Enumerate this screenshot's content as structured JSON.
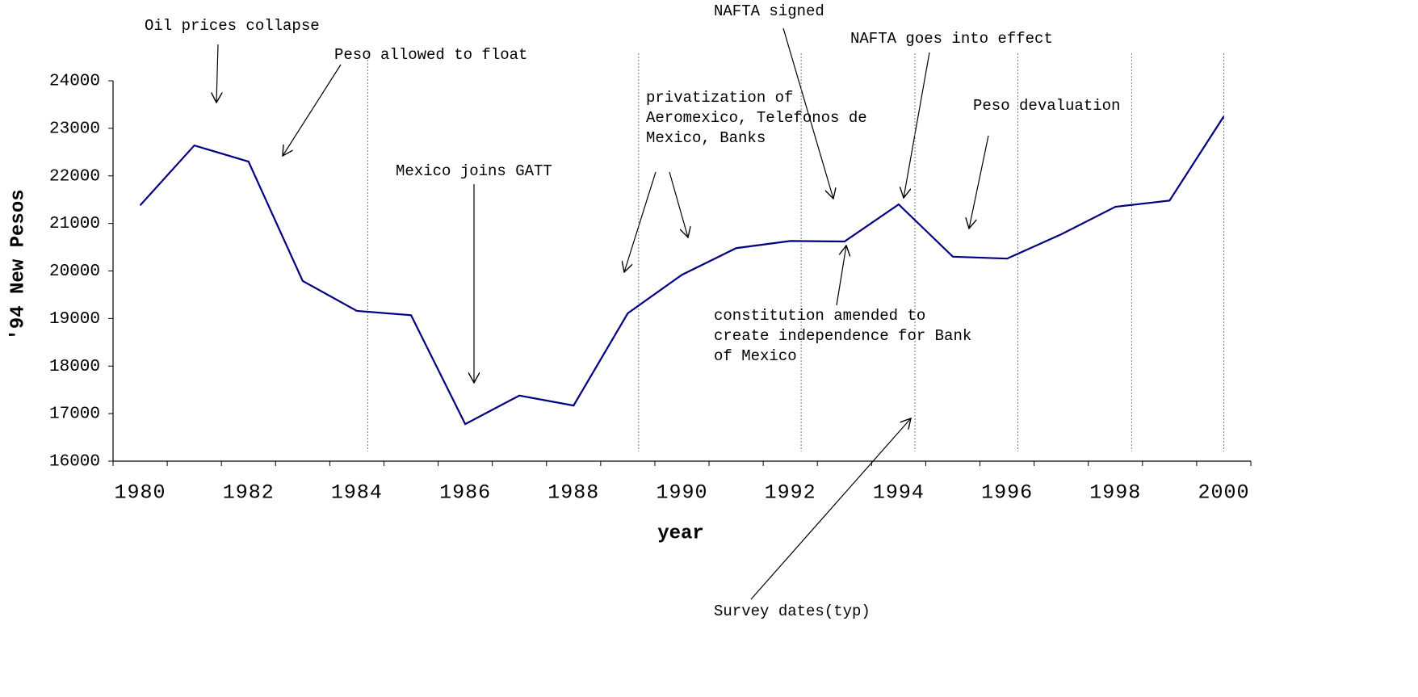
{
  "chart_data": {
    "type": "line",
    "xlabel": "year",
    "ylabel": "'94 New Pesos",
    "categories": [
      1980,
      null,
      1982,
      null,
      1984,
      null,
      1986,
      null,
      1988,
      null,
      1990,
      null,
      1992,
      null,
      1994,
      null,
      1996,
      null,
      1998,
      null,
      2000
    ],
    "series": [
      {
        "color": "#000080",
        "values": [
          21380,
          22640,
          22300,
          19790,
          19160,
          19070,
          16780,
          17380,
          17170,
          19110,
          19920,
          20480,
          20630,
          20620,
          21400,
          20300,
          20260,
          20770,
          21350,
          21480,
          23250
        ]
      }
    ],
    "ylim": [
      16000,
      24000
    ],
    "yticks": [
      16000,
      17000,
      18000,
      19000,
      20000,
      21000,
      22000,
      23000,
      24000
    ],
    "survey_dates": [
      1984.2,
      1989.2,
      1992.2,
      1994.3,
      1996.2,
      1998.3,
      2000.0
    ],
    "annotations": [
      [
        "Oil prices collapse"
      ],
      [
        "Peso allowed to float"
      ],
      [
        "Mexico joins GATT"
      ],
      [
        "privatization of",
        "Aeromexico, Telefonos de",
        "Mexico, Banks"
      ],
      [
        "NAFTA signed"
      ],
      [
        "NAFTA goes into effect"
      ],
      [
        "Peso devaluation"
      ],
      [
        "constitution amended to",
        "create independence for Bank",
        "of Mexico"
      ],
      [
        "Survey dates(typ)"
      ]
    ]
  }
}
